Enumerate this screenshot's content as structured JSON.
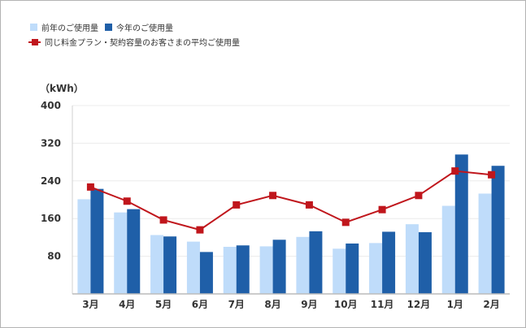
{
  "chart_data": {
    "type": "bar",
    "unit_label": "（kWh）",
    "categories": [
      "3月",
      "4月",
      "5月",
      "6月",
      "7月",
      "8月",
      "9月",
      "10月",
      "11月",
      "12月",
      "1月",
      "2月"
    ],
    "series": [
      {
        "name": "前年のご使用量",
        "type": "bar",
        "color": "#bfdcfa",
        "values": [
          201,
          173,
          125,
          111,
          100,
          101,
          121,
          96,
          108,
          148,
          187,
          213
        ]
      },
      {
        "name": "今年のご使用量",
        "type": "bar",
        "color": "#1f5fa8",
        "values": [
          223,
          180,
          122,
          89,
          103,
          115,
          133,
          107,
          132,
          131,
          296,
          272
        ]
      },
      {
        "name": "同じ料金プラン・契約容量のお客さまの平均ご使用量",
        "type": "line",
        "color": "#c0161c",
        "values": [
          227,
          197,
          157,
          136,
          189,
          209,
          189,
          152,
          179,
          209,
          261,
          253
        ]
      }
    ],
    "ylim": [
      0,
      400
    ],
    "yticks": [
      80,
      160,
      240,
      320,
      400
    ],
    "grid": true,
    "legend_position": "top-left"
  }
}
